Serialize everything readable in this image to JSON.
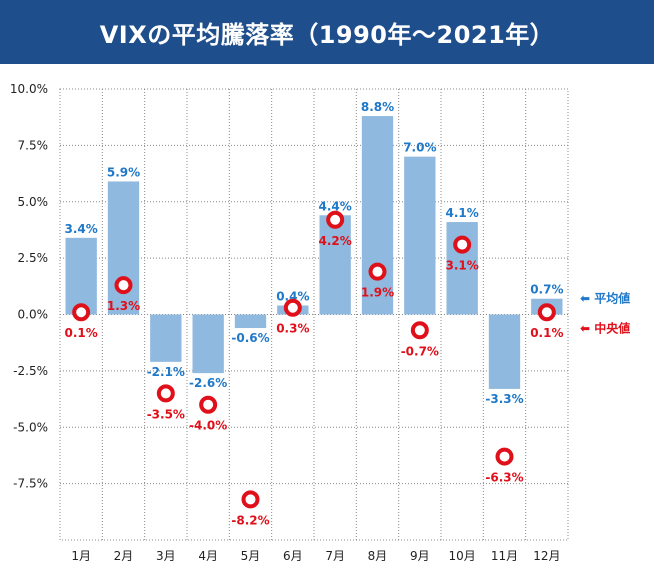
{
  "title": "VIXの平均騰落率（1990年〜2021年）",
  "chart_data": {
    "type": "bar",
    "categories": [
      "1月",
      "2月",
      "3月",
      "4月",
      "5月",
      "6月",
      "7月",
      "8月",
      "9月",
      "10月",
      "11月",
      "12月"
    ],
    "series": [
      {
        "name": "平均値",
        "values": [
          3.4,
          5.9,
          -2.1,
          -2.6,
          -0.6,
          0.4,
          4.4,
          8.8,
          7.0,
          4.1,
          -3.3,
          0.7
        ],
        "labels": [
          "3.4%",
          "5.9%",
          "-2.1%",
          "-2.6%",
          "-0.6%",
          "0.4%",
          "4.4%",
          "8.8%",
          "7.0%",
          "4.1%",
          "-3.3%",
          "0.7%"
        ],
        "color": "#8fb9de",
        "label_color": "#1f78c8"
      },
      {
        "name": "中央値",
        "values": [
          0.1,
          1.3,
          -3.5,
          -4.0,
          -8.2,
          0.3,
          4.2,
          1.9,
          -0.7,
          3.1,
          -6.3,
          0.1
        ],
        "labels": [
          "0.1%",
          "1.3%",
          "-3.5%",
          "-4.0%",
          "-8.2%",
          "0.3%",
          "4.2%",
          "1.9%",
          "-0.7%",
          "3.1%",
          "-6.3%",
          "0.1%"
        ],
        "color": "#e0101a"
      }
    ],
    "ylim": [
      -10,
      10
    ],
    "yticks": [
      10,
      7.5,
      5,
      2.5,
      0,
      -2.5,
      -5,
      -7.5
    ],
    "ytick_labels": [
      "10.0%",
      "7.5%",
      "5.0%",
      "2.5%",
      "0.0%",
      "-2.5%",
      "-5.0%",
      "-7.5%"
    ],
    "grid": true,
    "legend": {
      "position": "right",
      "entries": [
        {
          "arrow": "⬅",
          "text": "平均値",
          "color": "#1f78c8"
        },
        {
          "arrow": "⬅",
          "text": "中央値",
          "color": "#e0101a"
        }
      ]
    }
  }
}
